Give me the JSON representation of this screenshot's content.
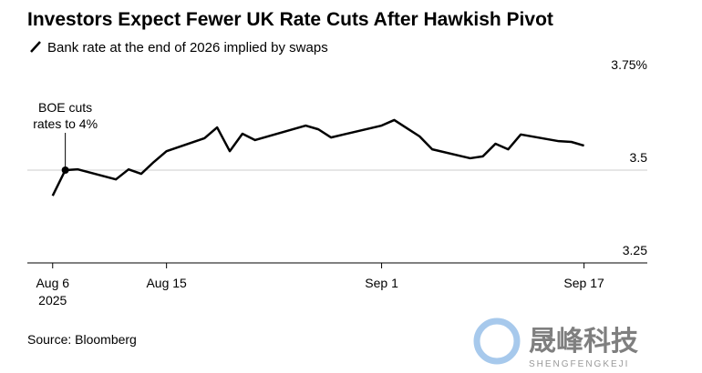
{
  "chart_data": {
    "type": "line",
    "title": "Investors Expect Fewer UK Rate Cuts After Hawkish Pivot",
    "x": [
      "2025-08-06",
      "2025-08-07",
      "2025-08-08",
      "2025-08-11",
      "2025-08-12",
      "2025-08-13",
      "2025-08-14",
      "2025-08-15",
      "2025-08-18",
      "2025-08-19",
      "2025-08-20",
      "2025-08-21",
      "2025-08-22",
      "2025-08-26",
      "2025-08-27",
      "2025-08-28",
      "2025-08-29",
      "2025-09-01",
      "2025-09-02",
      "2025-09-03",
      "2025-09-04",
      "2025-09-05",
      "2025-09-08",
      "2025-09-09",
      "2025-09-10",
      "2025-09-11",
      "2025-09-12",
      "2025-09-15",
      "2025-09-16",
      "2025-09-17"
    ],
    "series": [
      {
        "name": "Bank rate at the end of 2026 implied by swaps",
        "color": "#000000",
        "values": [
          3.431,
          3.5,
          3.502,
          3.475,
          3.502,
          3.49,
          3.522,
          3.551,
          3.586,
          3.615,
          3.551,
          3.598,
          3.581,
          3.62,
          3.61,
          3.588,
          3.596,
          3.62,
          3.635,
          3.613,
          3.591,
          3.556,
          3.532,
          3.537,
          3.571,
          3.556,
          3.596,
          3.578,
          3.576,
          3.566
        ]
      }
    ],
    "xlim": [
      "2025-08-04",
      "2025-09-22"
    ],
    "xticks": [
      {
        "value": "2025-08-06",
        "label": "Aug 6"
      },
      {
        "value": "2025-08-15",
        "label": "Aug 15"
      },
      {
        "value": "2025-09-01",
        "label": "Sep 1"
      },
      {
        "value": "2025-09-17",
        "label": "Sep 17"
      }
    ],
    "x_year_label": "2025",
    "ylim": [
      3.25,
      3.75
    ],
    "yticks": [
      3.25,
      3.5,
      {
        "value": 3.75,
        "label": "3.75%"
      }
    ],
    "yticks_labels": [
      "3.25",
      "3.50",
      "3.75%"
    ],
    "grid": true,
    "annotation": {
      "lines": [
        "BOE cuts",
        "rates to 4%"
      ],
      "x": "2025-08-07",
      "point": 1
    },
    "source": "Source: Bloomberg",
    "watermark": {
      "title": "晟峰科技",
      "subtitle": "SHENGFENGKEJI"
    }
  }
}
